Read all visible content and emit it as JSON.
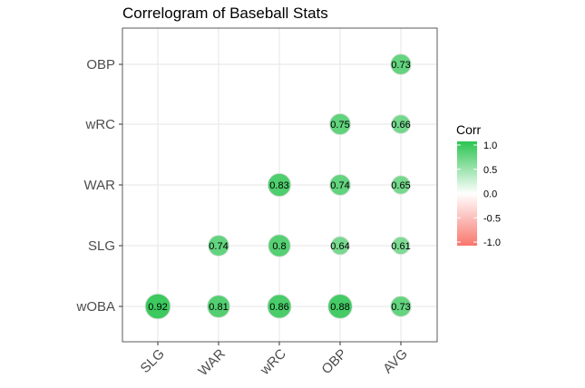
{
  "chart_data": {
    "type": "scatter",
    "title": "Correlogram of Baseball Stats",
    "xlabel": "",
    "ylabel": "",
    "x_categories": [
      "SLG",
      "WAR",
      "wRC",
      "OBP",
      "AVG"
    ],
    "y_categories": [
      "wOBA",
      "SLG",
      "WAR",
      "wRC",
      "OBP"
    ],
    "points": [
      {
        "x": "SLG",
        "y": "wOBA",
        "value": 0.92,
        "label": "0.92"
      },
      {
        "x": "WAR",
        "y": "wOBA",
        "value": 0.81,
        "label": "0.81"
      },
      {
        "x": "wRC",
        "y": "wOBA",
        "value": 0.86,
        "label": "0.86"
      },
      {
        "x": "OBP",
        "y": "wOBA",
        "value": 0.88,
        "label": "0.88"
      },
      {
        "x": "AVG",
        "y": "wOBA",
        "value": 0.73,
        "label": "0.73"
      },
      {
        "x": "WAR",
        "y": "SLG",
        "value": 0.74,
        "label": "0.74"
      },
      {
        "x": "wRC",
        "y": "SLG",
        "value": 0.8,
        "label": "0.8"
      },
      {
        "x": "OBP",
        "y": "SLG",
        "value": 0.64,
        "label": "0.64"
      },
      {
        "x": "AVG",
        "y": "SLG",
        "value": 0.61,
        "label": "0.61"
      },
      {
        "x": "wRC",
        "y": "WAR",
        "value": 0.83,
        "label": "0.83"
      },
      {
        "x": "OBP",
        "y": "WAR",
        "value": 0.74,
        "label": "0.74"
      },
      {
        "x": "AVG",
        "y": "WAR",
        "value": 0.65,
        "label": "0.65"
      },
      {
        "x": "OBP",
        "y": "wRC",
        "value": 0.75,
        "label": "0.75"
      },
      {
        "x": "AVG",
        "y": "wRC",
        "value": 0.66,
        "label": "0.66"
      },
      {
        "x": "AVG",
        "y": "OBP",
        "value": 0.73,
        "label": "0.73"
      }
    ],
    "legend": {
      "title": "Corr",
      "ticks": [
        "1.0",
        "0.5",
        "0.0",
        "-0.5",
        "-1.0"
      ],
      "range": [
        -1,
        1
      ],
      "placement": "right"
    },
    "colors": {
      "low": "#F8766D",
      "mid": "#FFFFFF",
      "high": "#2BC450"
    },
    "grid": true
  }
}
